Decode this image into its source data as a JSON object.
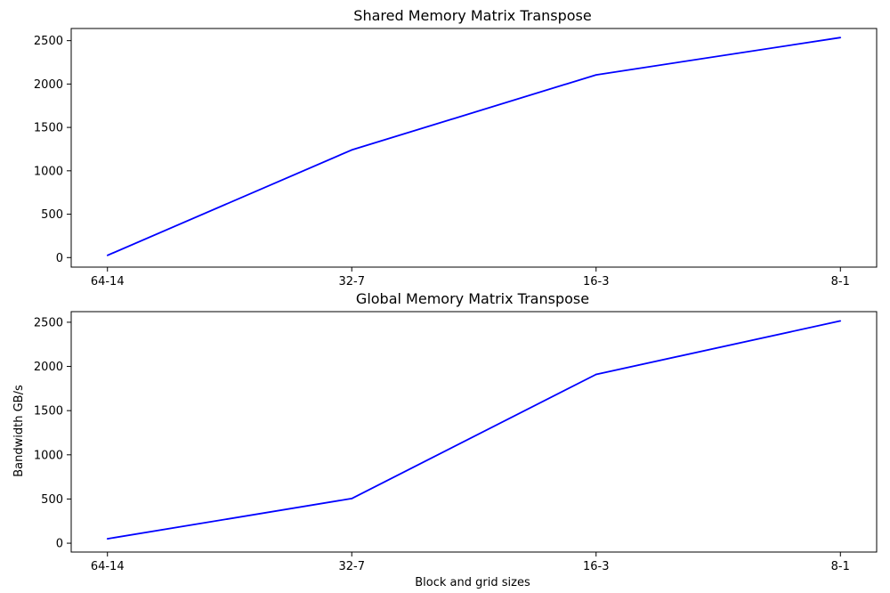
{
  "chart_data": [
    {
      "type": "line",
      "title": "Shared Memory Matrix Transpose",
      "xlabel": "",
      "ylabel": "",
      "categories": [
        "64-14",
        "32-7",
        "16-3",
        "8-1"
      ],
      "values": [
        25,
        1240,
        2105,
        2535
      ],
      "ylim": [
        -110,
        2640
      ],
      "yticks": [
        0,
        500,
        1000,
        1500,
        2000,
        2500
      ],
      "color": "#0000ff",
      "grid": false
    },
    {
      "type": "line",
      "title": "Global Memory Matrix Transpose",
      "xlabel": "Block and grid sizes",
      "ylabel": "Bandwidth GB/s",
      "categories": [
        "64-14",
        "32-7",
        "16-3",
        "8-1"
      ],
      "values": [
        50,
        505,
        1910,
        2515
      ],
      "ylim": [
        -100,
        2620
      ],
      "yticks": [
        0,
        500,
        1000,
        1500,
        2000,
        2500
      ],
      "color": "#0000ff",
      "grid": false
    }
  ]
}
